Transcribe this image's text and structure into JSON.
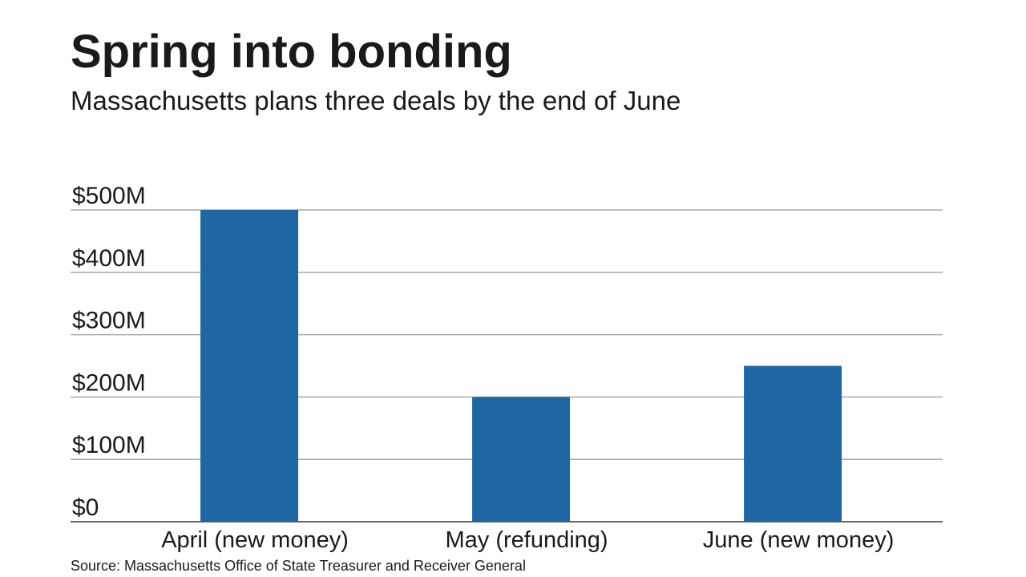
{
  "chart_data": {
    "type": "bar",
    "title": "Spring into bonding",
    "subtitle": "Massachusetts plans three deals by the end of June",
    "categories": [
      "April (new money)",
      "May (refunding)",
      "June (new money)"
    ],
    "values": [
      500,
      200,
      250
    ],
    "color": "#1f67a3",
    "ylim": [
      0,
      500
    ],
    "yticks": [
      {
        "value": 0,
        "label": "$0"
      },
      {
        "value": 100,
        "label": "$100M"
      },
      {
        "value": 200,
        "label": "$200M"
      },
      {
        "value": 300,
        "label": "$300M"
      },
      {
        "value": 400,
        "label": "$400M"
      },
      {
        "value": 500,
        "label": "$500M"
      }
    ],
    "grid": true,
    "source": "Source: Massachusetts Office of State Treasurer and Receiver General"
  }
}
